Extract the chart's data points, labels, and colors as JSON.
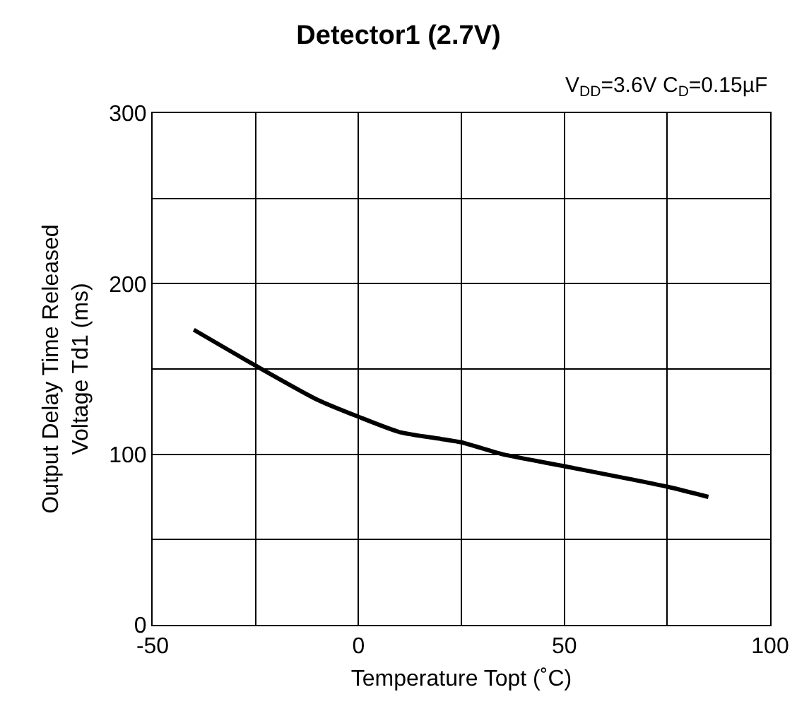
{
  "chart_data": {
    "type": "line",
    "title": "Detector1 (2.7V)",
    "subtitle": "V$_{DD}$=3.6V C$_{D}$=0.15µF",
    "xlabel": "Temperature Topt (˚C)",
    "ylabel": "Output Delay Time Released\nVoltage Td1 (ms)",
    "x": [
      -40,
      -25,
      -10,
      0,
      10,
      20,
      25,
      35,
      50,
      75,
      85
    ],
    "series": [
      {
        "color": "#000000",
        "values": [
          173,
          152,
          132,
          122,
          113,
          109,
          107,
          100,
          93,
          81,
          75
        ]
      }
    ],
    "xlim": [
      -50,
      100
    ],
    "xticks": [
      -50,
      {
        "value": -25,
        "label": null
      },
      0,
      {
        "value": 25,
        "label": null
      },
      50,
      {
        "value": 75,
        "label": null
      },
      100
    ],
    "ylim": [
      0,
      300
    ],
    "yticks": [
      0,
      {
        "value": 50,
        "label": null
      },
      100,
      {
        "value": 150,
        "label": null
      },
      200,
      {
        "value": 250,
        "label": null
      },
      300
    ],
    "grid": true,
    "marker": "none",
    "line_style": "solid"
  }
}
